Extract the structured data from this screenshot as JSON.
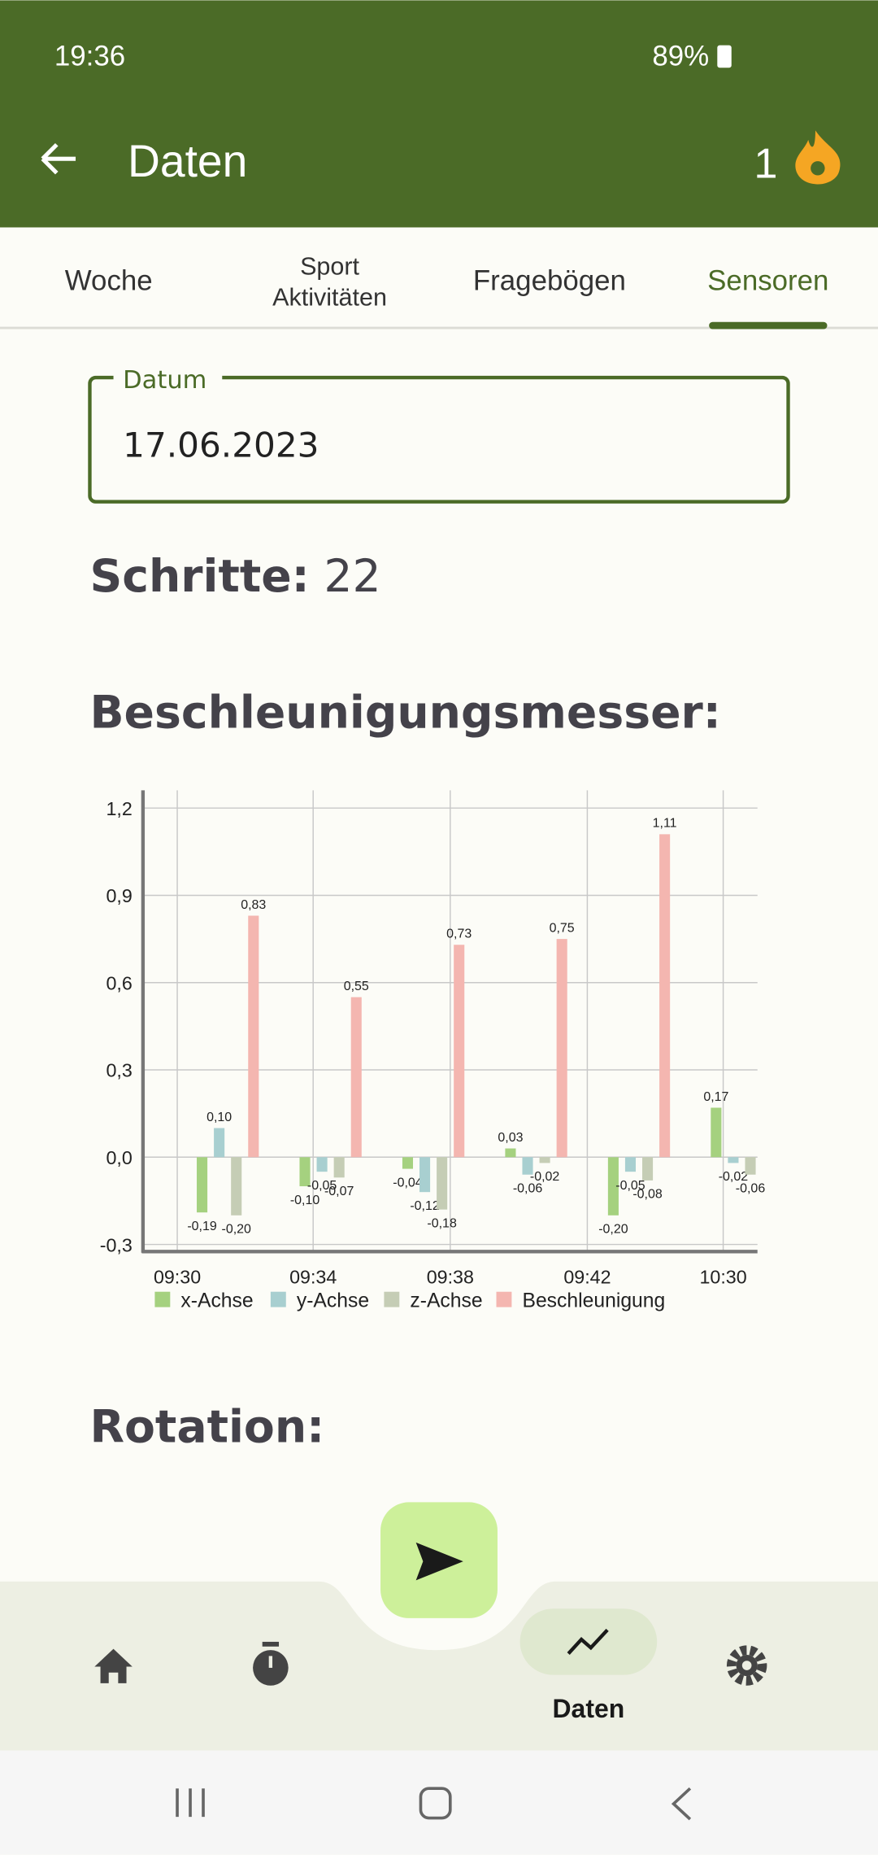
{
  "status_bar": {
    "time": "19:36",
    "battery": "89%"
  },
  "app_bar": {
    "title": "Daten",
    "streak": "1"
  },
  "tabs": [
    [
      "Woche"
    ],
    [
      "Sport",
      "Aktivitäten"
    ],
    [
      "Fragebögen"
    ],
    [
      "Sensoren"
    ]
  ],
  "date_field": {
    "label": "Datum",
    "value": "17.06.2023"
  },
  "steps": {
    "label": "Schritte:",
    "value": "22"
  },
  "sections": [
    "Beschleunigungsmesser:",
    "Rotation:"
  ],
  "chart_data": {
    "type": "bar",
    "categories": [
      null,
      null,
      null,
      null,
      null,
      null
    ],
    "xticks": [
      "09:30",
      "09:34",
      "09:38",
      "09:42",
      "10:30"
    ],
    "ylim": [
      -0.3,
      1.2
    ],
    "yticks": [
      {
        "value": -0.3,
        "label": "-0,3"
      },
      {
        "value": 0,
        "label": "0,0"
      },
      {
        "value": 0.3,
        "label": "0,3"
      },
      {
        "value": 0.6,
        "label": "0,6"
      },
      {
        "value": 0.9,
        "label": "0,9"
      },
      {
        "value": 1.2,
        "label": "1,2"
      }
    ],
    "grid": true,
    "legend": "bottom",
    "series": [
      {
        "name": "x-Achse",
        "color": "#a5d17f",
        "values": [
          -0.19,
          -0.1,
          -0.04,
          0.03,
          -0.2,
          0.17
        ],
        "value_labels": [
          "-0,19",
          "-0,10",
          "-0,04",
          "0,03",
          "-0,20",
          "0,17"
        ]
      },
      {
        "name": "y-Achse",
        "color": "#a8cfd0",
        "values": [
          0.1,
          -0.05,
          -0.12,
          -0.06,
          -0.05,
          -0.02
        ],
        "value_labels": [
          "0,10",
          "-0,05",
          "-0,12",
          "-0,06",
          "-0,05",
          "-0,02"
        ]
      },
      {
        "name": "z-Achse",
        "color": "#c5cdb5",
        "values": [
          -0.2,
          -0.07,
          -0.18,
          -0.02,
          -0.08,
          -0.06
        ],
        "value_labels": [
          "-0,20",
          "-0,07",
          "-0,18",
          "-0,02",
          "-0,08",
          "-0,06"
        ]
      },
      {
        "name": "Beschleunigung",
        "color": "#f4b6b0",
        "values": [
          0.83,
          0.55,
          0.73,
          0.75,
          1.11,
          null
        ],
        "value_labels": [
          "0,83",
          "0,55",
          "0,73",
          "0,75",
          "1,11",
          null
        ]
      }
    ]
  },
  "bottom_nav": {
    "active_label": "Daten"
  }
}
